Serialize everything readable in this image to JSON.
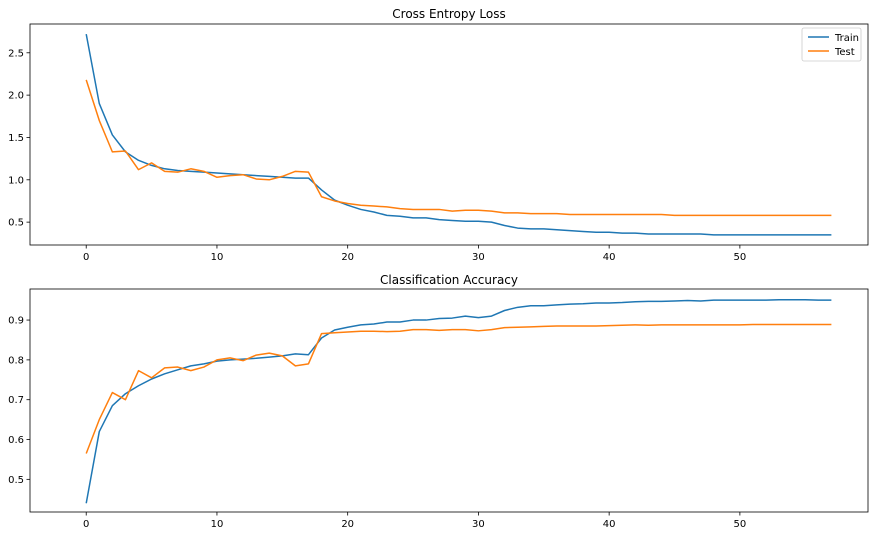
{
  "chart_data": [
    {
      "type": "line",
      "title": "Cross Entropy Loss",
      "xlabel": "",
      "ylabel": "",
      "xlim": [
        -4.3,
        59.8
      ],
      "ylim": [
        0.23,
        2.84
      ],
      "xticks": [
        0,
        10,
        20,
        30,
        40,
        50
      ],
      "yticks": [
        0.5,
        1.0,
        1.5,
        2.0,
        2.5
      ],
      "ytick_labels": [
        "0.5",
        "1.0",
        "1.5",
        "2.0",
        "2.5"
      ],
      "grid": false,
      "legend": {
        "placement": "upper right",
        "entries": [
          "Train",
          "Test"
        ]
      },
      "series": [
        {
          "name": "Train",
          "color": "#1f77b4",
          "x": [
            0,
            1,
            2,
            3,
            4,
            5,
            6,
            7,
            8,
            9,
            10,
            11,
            12,
            13,
            14,
            15,
            16,
            17,
            18,
            19,
            20,
            21,
            22,
            23,
            24,
            25,
            26,
            27,
            28,
            29,
            30,
            31,
            32,
            33,
            34,
            35,
            36,
            37,
            38,
            39,
            40,
            41,
            42,
            43,
            44,
            45,
            46,
            47,
            48,
            49,
            50,
            51,
            52,
            53,
            54,
            55,
            56,
            57
          ],
          "values": [
            2.72,
            1.9,
            1.53,
            1.33,
            1.23,
            1.17,
            1.13,
            1.11,
            1.1,
            1.09,
            1.08,
            1.07,
            1.06,
            1.05,
            1.04,
            1.03,
            1.02,
            1.02,
            0.88,
            0.76,
            0.7,
            0.65,
            0.62,
            0.58,
            0.57,
            0.55,
            0.55,
            0.53,
            0.52,
            0.51,
            0.51,
            0.5,
            0.46,
            0.43,
            0.42,
            0.42,
            0.41,
            0.4,
            0.39,
            0.38,
            0.38,
            0.37,
            0.37,
            0.36,
            0.36,
            0.36,
            0.36,
            0.36,
            0.35,
            0.35,
            0.35,
            0.35,
            0.35,
            0.35,
            0.35,
            0.35,
            0.35,
            0.35
          ]
        },
        {
          "name": "Test",
          "color": "#ff7f0e",
          "x": [
            0,
            1,
            2,
            3,
            4,
            5,
            6,
            7,
            8,
            9,
            10,
            11,
            12,
            13,
            14,
            15,
            16,
            17,
            18,
            19,
            20,
            21,
            22,
            23,
            24,
            25,
            26,
            27,
            28,
            29,
            30,
            31,
            32,
            33,
            34,
            35,
            36,
            37,
            38,
            39,
            40,
            41,
            42,
            43,
            44,
            45,
            46,
            47,
            48,
            49,
            50,
            51,
            52,
            53,
            54,
            55,
            56,
            57
          ],
          "values": [
            2.18,
            1.7,
            1.33,
            1.34,
            1.12,
            1.2,
            1.1,
            1.09,
            1.13,
            1.1,
            1.03,
            1.05,
            1.06,
            1.01,
            1.0,
            1.04,
            1.1,
            1.09,
            0.8,
            0.75,
            0.72,
            0.7,
            0.69,
            0.68,
            0.66,
            0.65,
            0.65,
            0.65,
            0.63,
            0.64,
            0.64,
            0.63,
            0.61,
            0.61,
            0.6,
            0.6,
            0.6,
            0.59,
            0.59,
            0.59,
            0.59,
            0.59,
            0.59,
            0.59,
            0.59,
            0.58,
            0.58,
            0.58,
            0.58,
            0.58,
            0.58,
            0.58,
            0.58,
            0.58,
            0.58,
            0.58,
            0.58,
            0.58
          ]
        }
      ]
    },
    {
      "type": "line",
      "title": "Classification Accuracy",
      "xlabel": "",
      "ylabel": "",
      "xlim": [
        -4.3,
        59.8
      ],
      "ylim": [
        0.418,
        0.978
      ],
      "xticks": [
        0,
        10,
        20,
        30,
        40,
        50
      ],
      "yticks": [
        0.5,
        0.6,
        0.7,
        0.8,
        0.9
      ],
      "ytick_labels": [
        "0.5",
        "0.6",
        "0.7",
        "0.8",
        "0.9"
      ],
      "grid": false,
      "series": [
        {
          "color": "#1f77b4",
          "x": [
            0,
            1,
            2,
            3,
            4,
            5,
            6,
            7,
            8,
            9,
            10,
            11,
            12,
            13,
            14,
            15,
            16,
            17,
            18,
            19,
            20,
            21,
            22,
            23,
            24,
            25,
            26,
            27,
            28,
            29,
            30,
            31,
            32,
            33,
            34,
            35,
            36,
            37,
            38,
            39,
            40,
            41,
            42,
            43,
            44,
            45,
            46,
            47,
            48,
            49,
            50,
            51,
            52,
            53,
            54,
            55,
            56,
            57
          ],
          "values": [
            0.44,
            0.62,
            0.685,
            0.715,
            0.735,
            0.752,
            0.765,
            0.775,
            0.785,
            0.79,
            0.797,
            0.8,
            0.802,
            0.804,
            0.807,
            0.81,
            0.815,
            0.813,
            0.855,
            0.875,
            0.882,
            0.888,
            0.89,
            0.895,
            0.895,
            0.9,
            0.9,
            0.904,
            0.905,
            0.91,
            0.906,
            0.91,
            0.924,
            0.932,
            0.936,
            0.936,
            0.938,
            0.94,
            0.941,
            0.943,
            0.943,
            0.944,
            0.946,
            0.947,
            0.947,
            0.948,
            0.949,
            0.948,
            0.95,
            0.95,
            0.95,
            0.95,
            0.95,
            0.951,
            0.951,
            0.951,
            0.95,
            0.95
          ]
        },
        {
          "color": "#ff7f0e",
          "x": [
            0,
            1,
            2,
            3,
            4,
            5,
            6,
            7,
            8,
            9,
            10,
            11,
            12,
            13,
            14,
            15,
            16,
            17,
            18,
            19,
            20,
            21,
            22,
            23,
            24,
            25,
            26,
            27,
            28,
            29,
            30,
            31,
            32,
            33,
            34,
            35,
            36,
            37,
            38,
            39,
            40,
            41,
            42,
            43,
            44,
            45,
            46,
            47,
            48,
            49,
            50,
            51,
            52,
            53,
            54,
            55,
            56,
            57
          ],
          "values": [
            0.565,
            0.65,
            0.718,
            0.7,
            0.773,
            0.755,
            0.78,
            0.782,
            0.773,
            0.782,
            0.8,
            0.805,
            0.798,
            0.812,
            0.817,
            0.81,
            0.785,
            0.79,
            0.866,
            0.868,
            0.87,
            0.872,
            0.872,
            0.871,
            0.872,
            0.876,
            0.876,
            0.874,
            0.876,
            0.876,
            0.873,
            0.876,
            0.881,
            0.882,
            0.883,
            0.884,
            0.885,
            0.885,
            0.885,
            0.885,
            0.886,
            0.887,
            0.888,
            0.887,
            0.888,
            0.888,
            0.888,
            0.888,
            0.888,
            0.888,
            0.888,
            0.889,
            0.889,
            0.889,
            0.889,
            0.889,
            0.889,
            0.889
          ]
        }
      ]
    }
  ]
}
